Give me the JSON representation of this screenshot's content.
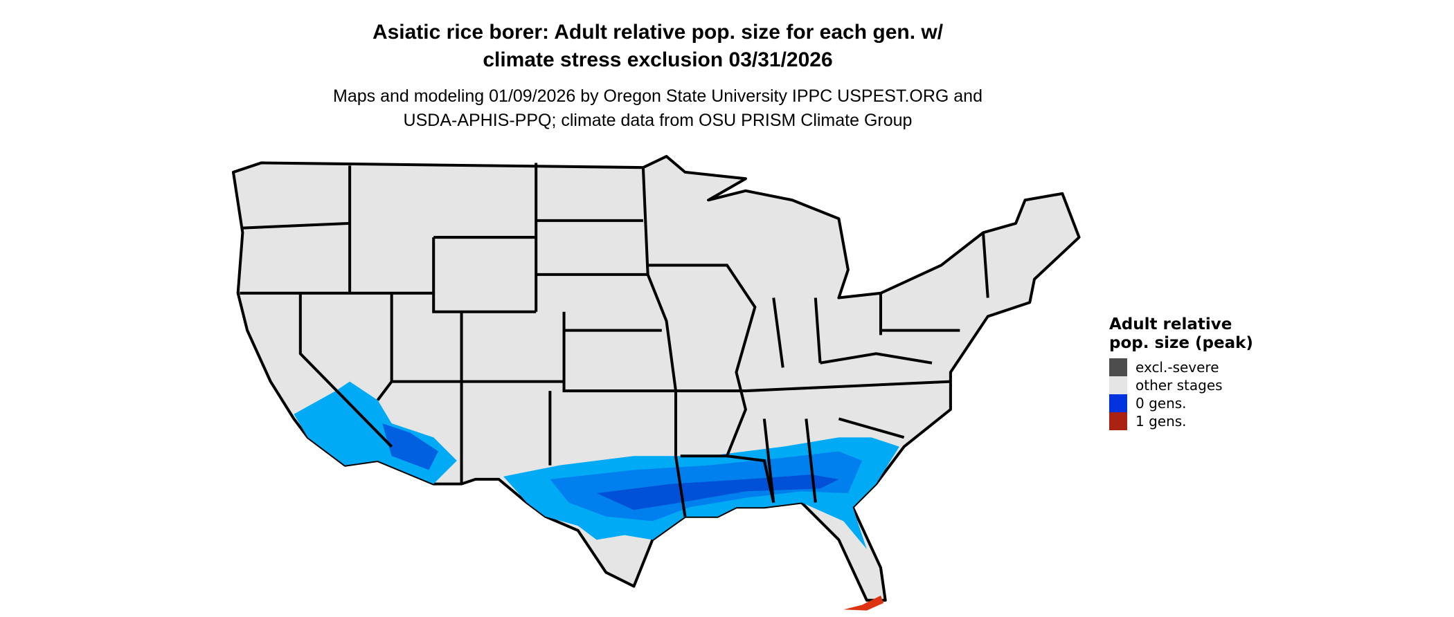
{
  "title_lines": [
    "Asiatic rice borer: Adult relative pop. size for each gen. w/",
    "climate stress exclusion 03/31/2026"
  ],
  "subtitle_lines": [
    "Maps and modeling 01/09/2026 by Oregon State University IPPC USPEST.ORG and",
    "USDA-APHIS-PPQ; climate data from OSU PRISM Climate Group"
  ],
  "legend": {
    "title": "Adult relative pop. size (peak)",
    "items": [
      {
        "label": "excl.-severe",
        "color": "#4d4d4d"
      },
      {
        "label": "other stages",
        "color": "#e5e5e5"
      },
      {
        "label": "0 gens.",
        "color": "#0033dd"
      },
      {
        "label": "1 gens.",
        "color": "#aa2211"
      }
    ]
  },
  "map_colors": {
    "land": "#e5e5e5",
    "border": "#000000",
    "light_blue": "#00aaf5",
    "mid_blue": "#0080ee",
    "dark_blue": "#0050d8",
    "red": "#dd3311"
  }
}
